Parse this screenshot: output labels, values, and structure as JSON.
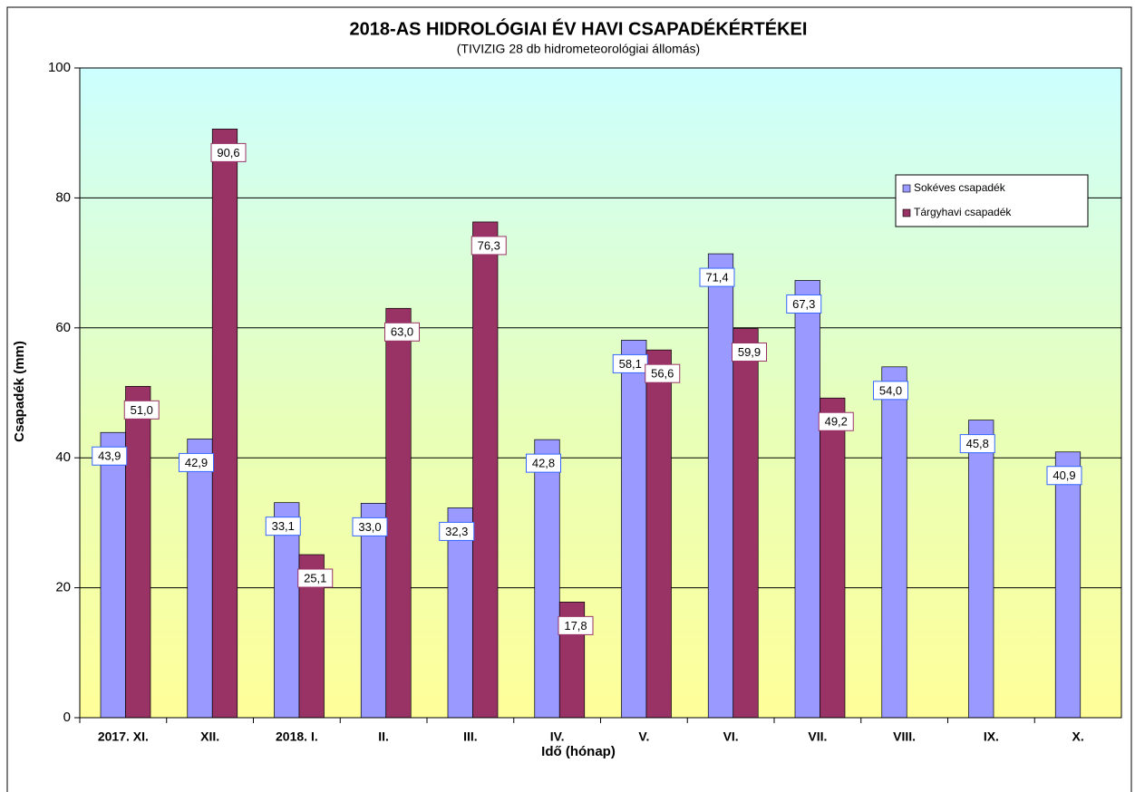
{
  "chart_data": {
    "type": "bar",
    "title": "2018-AS HIDROLÓGIAI  ÉV HAVI  CSAPADÉKÉRTÉKEI",
    "subtitle": "(TIVIZIG  28 db hidrometeorológiai állomás)",
    "x_label": "Idő (hónap)",
    "y_label": "Csapadék (mm)",
    "categories": [
      "2017. XI.",
      "XII.",
      "2018. I.",
      "II.",
      "III.",
      "IV.",
      "V.",
      "VI.",
      "VII.",
      "VIII.",
      "IX.",
      "X."
    ],
    "series": [
      {
        "name": "Sokéves csapadék",
        "color": "#9999ff",
        "label_border": "#3366ff",
        "values": [
          43.9,
          42.9,
          33.1,
          33.0,
          32.3,
          42.8,
          58.1,
          71.4,
          67.3,
          54.0,
          45.8,
          40.9
        ],
        "value_labels": [
          "43,9",
          "42,9",
          "33,1",
          "33,0",
          "32,3",
          "42,8",
          "58,1",
          "71,4",
          "67,3",
          "54,0",
          "45,8",
          "40,9"
        ]
      },
      {
        "name": "Tárgyhavi csapadék",
        "color": "#993366",
        "label_border": "#993366",
        "values": [
          51.0,
          90.6,
          25.1,
          63.0,
          76.3,
          17.8,
          56.6,
          59.9,
          49.2,
          null,
          null,
          null
        ],
        "value_labels": [
          "51,0",
          "90,6",
          "25,1",
          "63,0",
          "76,3",
          "17,8",
          "56,6",
          "59,9",
          "49,2",
          null,
          null,
          null
        ]
      }
    ],
    "ylim": [
      0,
      100
    ],
    "yticks": [
      0,
      20,
      40,
      60,
      80,
      100
    ],
    "grid": true
  }
}
